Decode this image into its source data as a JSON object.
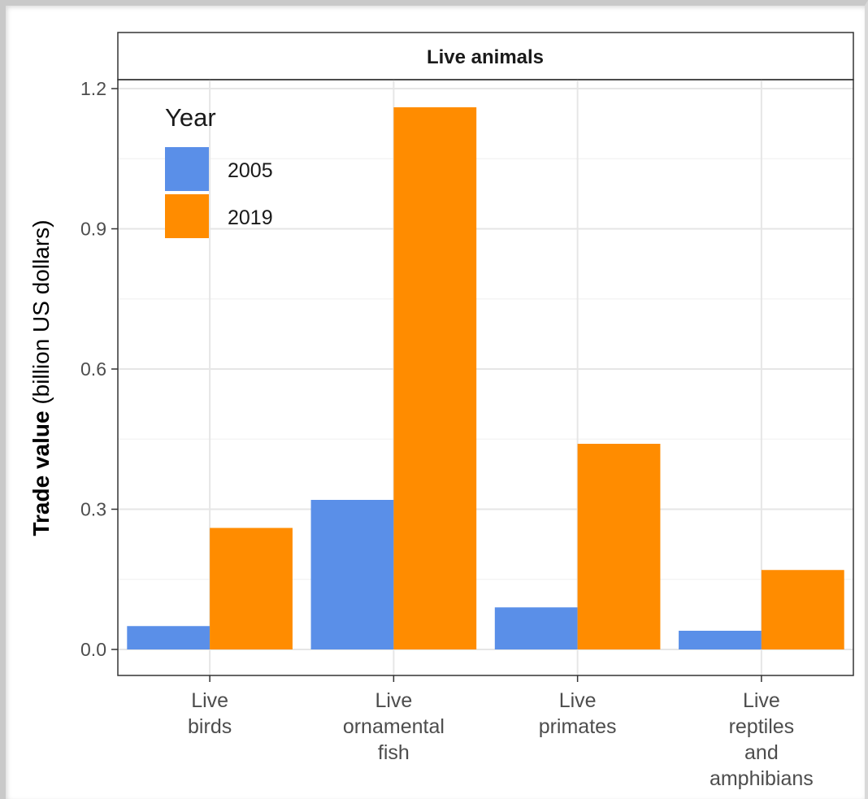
{
  "chart_data": {
    "type": "bar",
    "title": "Live animals",
    "ylabel_bold": "Trade value",
    "ylabel_rest": " (billion US dollars)",
    "xlabel": "",
    "ylim": [
      0,
      1.22
    ],
    "yticks": [
      0.0,
      0.3,
      0.6,
      0.9,
      1.2
    ],
    "ytick_labels": [
      "0.0",
      "0.3",
      "0.6",
      "0.9",
      "1.2"
    ],
    "grid": true,
    "legend": {
      "title": "Year",
      "placement": "top-left"
    },
    "categories": [
      [
        "Live",
        "birds"
      ],
      [
        "Live",
        "ornamental",
        "fish"
      ],
      [
        "Live",
        "primates"
      ],
      [
        "Live",
        "reptiles",
        "and",
        "amphibians"
      ]
    ],
    "series": [
      {
        "name": "2005",
        "color": "#5a8fe8",
        "values": [
          0.05,
          0.32,
          0.09,
          0.04
        ]
      },
      {
        "name": "2019",
        "color": "#ff8c00",
        "values": [
          0.26,
          1.16,
          0.44,
          0.17
        ]
      }
    ]
  }
}
